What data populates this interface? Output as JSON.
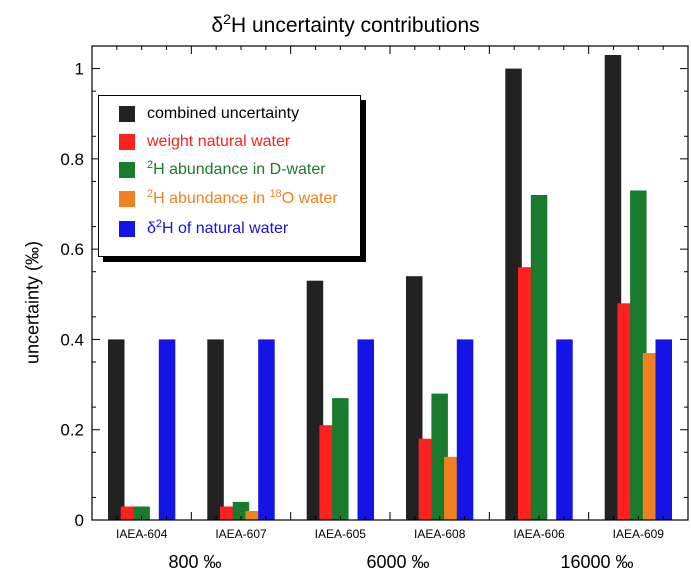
{
  "chart_data": {
    "type": "bar",
    "title": {
      "pre": "δ",
      "sup": "2",
      "post": "H uncertainty contributions"
    },
    "ylabel": "uncertainty (‰)",
    "ylim": [
      0,
      1.05
    ],
    "yticks": [
      "0",
      "0.2",
      "0.4",
      "0.6",
      "0.8",
      "1"
    ],
    "grid": false,
    "legend_position": "top-left",
    "categories": [
      "IAEA-604",
      "IAEA-607",
      "IAEA-605",
      "IAEA-608",
      "IAEA-606",
      "IAEA-609"
    ],
    "groups": [
      {
        "label": "800 ‰",
        "categories": [
          "IAEA-604",
          "IAEA-607"
        ]
      },
      {
        "label": "6000 ‰",
        "categories": [
          "IAEA-605",
          "IAEA-608"
        ]
      },
      {
        "label": "16000 ‰",
        "categories": [
          "IAEA-606",
          "IAEA-609"
        ]
      }
    ],
    "series": [
      {
        "name": "combined uncertainty",
        "color": "#222222",
        "text_color": "#000000",
        "label_parts": {
          "pre": "combined uncertainty"
        },
        "values": [
          0.4,
          0.4,
          0.53,
          0.54,
          1.0,
          1.03
        ]
      },
      {
        "name": "weight natural water",
        "color": "#ff2020",
        "text_color": "#ff2020",
        "label_parts": {
          "pre": "weight natural water"
        },
        "values": [
          0.03,
          0.03,
          0.21,
          0.18,
          0.56,
          0.48
        ]
      },
      {
        "name": "2H abundance in D-water",
        "color": "#1a7a2e",
        "text_color": "#1a7a2e",
        "label_parts": {
          "sup1": "2",
          "pre": "H abundance in D-water"
        },
        "values": [
          0.03,
          0.04,
          0.27,
          0.28,
          0.72,
          0.73
        ]
      },
      {
        "name": "2H abundance in 18O water",
        "color": "#f08020",
        "text_color": "#f08020",
        "label_parts": {
          "sup1": "2",
          "pre": "H abundance in ",
          "sup2": "18",
          "post": "O water"
        },
        "values": [
          0,
          0.02,
          0,
          0.14,
          0,
          0.37
        ]
      },
      {
        "name": "δ2H of natural water",
        "color": "#1414e6",
        "text_color": "#1414e6",
        "label_parts": {
          "pre": "δ",
          "sup1": "2",
          "post": "H of natural water"
        },
        "values": [
          0.4,
          0.4,
          0.4,
          0.4,
          0.4,
          0.4
        ]
      }
    ]
  }
}
